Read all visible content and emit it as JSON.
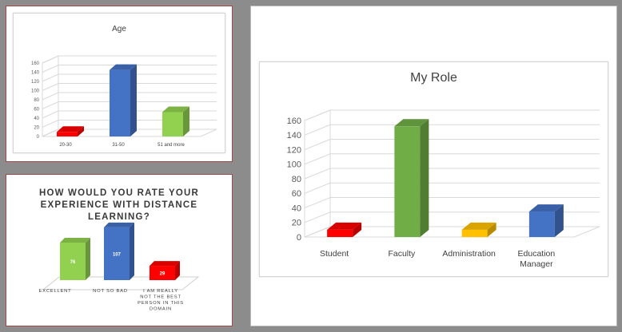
{
  "charts": {
    "age": {
      "chart_data": {
        "type": "bar",
        "title": "Age",
        "categories": [
          "20-30",
          "31-50",
          "51 and more"
        ],
        "values": [
          10,
          145,
          53
        ],
        "colors": [
          "#ff0000",
          "#4472c4",
          "#92d050"
        ],
        "ylim": [
          0,
          160
        ],
        "yticks": [
          0,
          20,
          40,
          60,
          80,
          100,
          120,
          140,
          160
        ],
        "grid": true,
        "three_d": true
      }
    },
    "experience": {
      "chart_data": {
        "type": "bar",
        "title": "HOW WOULD YOU RATE YOUR EXPERIENCE WITH DISTANCE LEARNING?",
        "categories": [
          "EXCELLENT",
          "NOT SO BAD",
          "I AM REALLY NOT THE BEST PERSON IN THIS DOMAIN"
        ],
        "values": [
          76,
          107,
          29
        ],
        "data_labels": [
          "76",
          "107",
          "29"
        ],
        "colors": [
          "#92d050",
          "#4472c4",
          "#ff0000"
        ],
        "three_d": true
      }
    },
    "role": {
      "chart_data": {
        "type": "bar",
        "title": "My Role",
        "categories": [
          "Student",
          "Faculty",
          "Administration",
          "Education Manager"
        ],
        "values": [
          10,
          152,
          10,
          35
        ],
        "colors": [
          "#ff0000",
          "#70ad47",
          "#ffc000",
          "#4472c4"
        ],
        "ylim": [
          0,
          160
        ],
        "yticks": [
          0,
          20,
          40,
          60,
          80,
          100,
          120,
          140,
          160
        ],
        "grid": true,
        "three_d": true
      }
    }
  }
}
